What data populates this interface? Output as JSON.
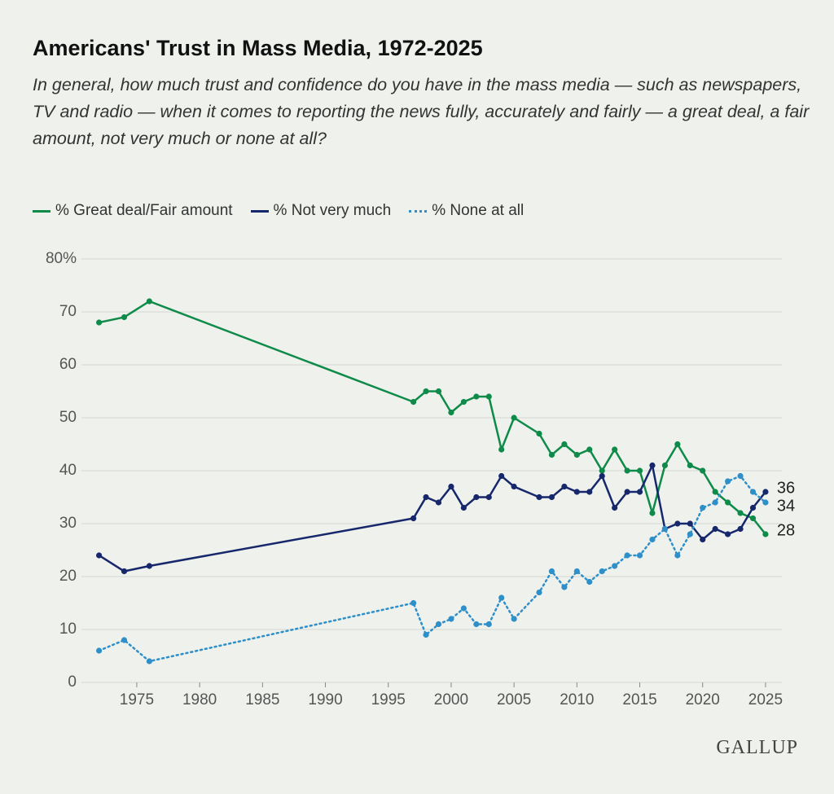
{
  "chart_data": {
    "type": "line",
    "title": "Americans' Trust in Mass Media, 1972-2025",
    "subtitle": "In general, how much trust and confidence do you have in the mass media — such as newspapers, TV and radio — when it comes to reporting the news fully, accurately and fairly — a great deal, a fair amount, not very much or none at all?",
    "x": [
      1972,
      1974,
      1976,
      1997,
      1998,
      1999,
      2000,
      2001,
      2002,
      2003,
      2004,
      2005,
      2007,
      2008,
      2009,
      2010,
      2011,
      2012,
      2013,
      2014,
      2015,
      2016,
      2017,
      2018,
      2019,
      2020,
      2021,
      2022,
      2023,
      2024,
      2025
    ],
    "series": [
      {
        "name": "% Great deal/Fair amount",
        "color": "#0e8a49",
        "style": "solid",
        "values": [
          68,
          69,
          72,
          53,
          55,
          55,
          51,
          53,
          54,
          54,
          44,
          50,
          47,
          43,
          45,
          43,
          44,
          40,
          44,
          40,
          40,
          32,
          41,
          45,
          41,
          40,
          36,
          34,
          32,
          31,
          28
        ]
      },
      {
        "name": "% Not very much",
        "color": "#16276b",
        "style": "solid",
        "values": [
          24,
          21,
          22,
          31,
          35,
          34,
          37,
          33,
          35,
          35,
          39,
          37,
          35,
          35,
          37,
          36,
          36,
          39,
          33,
          36,
          36,
          41,
          29,
          30,
          30,
          27,
          29,
          28,
          29,
          33,
          36
        ]
      },
      {
        "name": "% None at all",
        "color": "#2f8fc9",
        "style": "dotted",
        "values": [
          6,
          8,
          4,
          15,
          9,
          11,
          12,
          14,
          11,
          11,
          16,
          12,
          17,
          21,
          18,
          21,
          19,
          21,
          22,
          24,
          24,
          27,
          29,
          24,
          28,
          33,
          34,
          38,
          39,
          36,
          34
        ]
      }
    ],
    "xlim": [
      1970.6,
      2026.3
    ],
    "xticks": [
      1975,
      1980,
      1985,
      1990,
      1995,
      2000,
      2005,
      2010,
      2015,
      2020,
      2025
    ],
    "ylim": [
      0,
      80
    ],
    "yticks": [
      0,
      10,
      20,
      30,
      40,
      50,
      60,
      70,
      {
        "value": 80,
        "label": "80%"
      }
    ],
    "grid": true,
    "source": "GALLUP"
  }
}
